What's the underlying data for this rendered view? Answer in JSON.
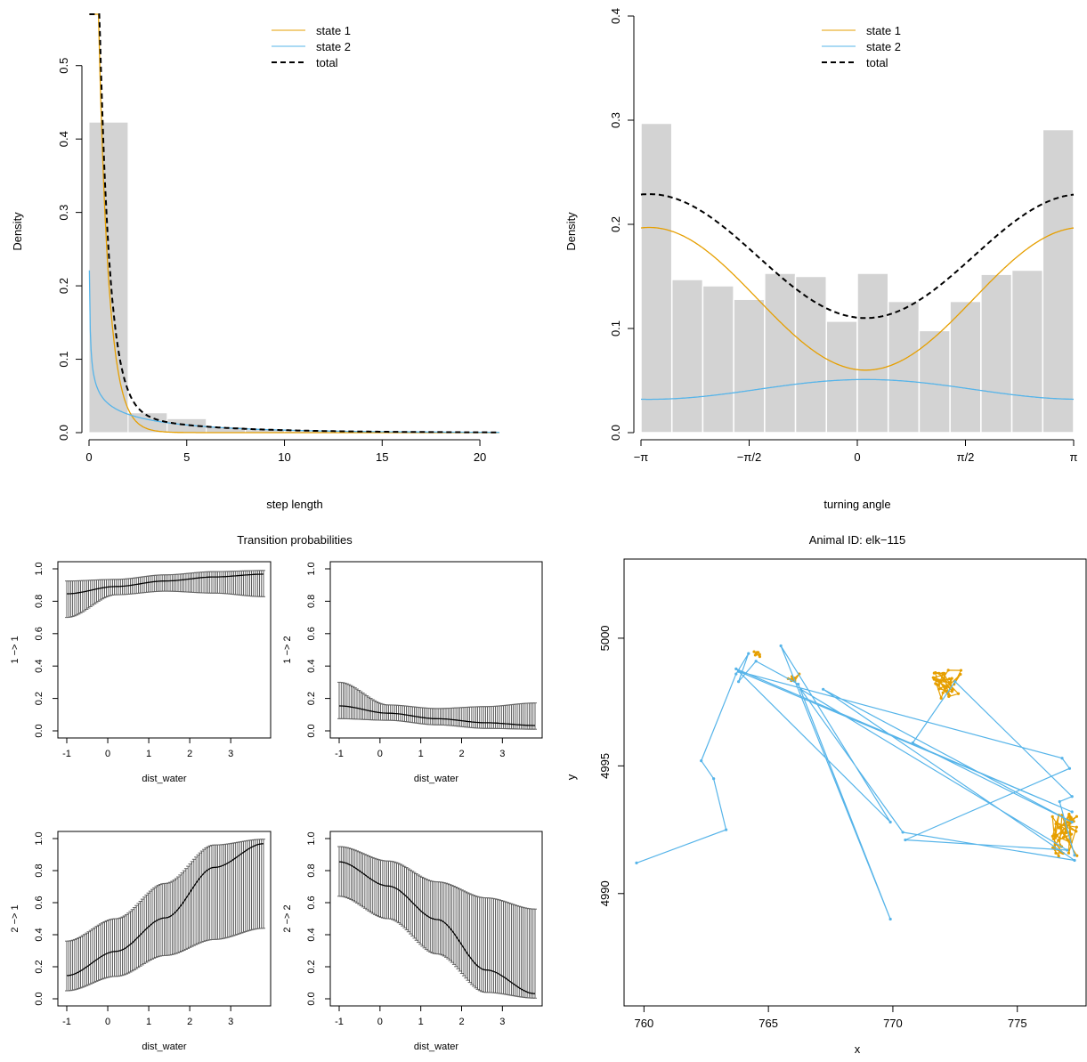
{
  "colors": {
    "state1": "#E69F00",
    "state2": "#56B4E9",
    "total": "#000000",
    "hist": "#d3d3d3",
    "ci": "#666666"
  },
  "chart_data": [
    {
      "id": "step",
      "type": "bar",
      "xlabel": "step length",
      "ylabel": "Density",
      "xlim": [
        0,
        21
      ],
      "ylim": [
        0,
        0.57
      ],
      "xticks": [
        0,
        5,
        10,
        15,
        20
      ],
      "yticks": [
        0.0,
        0.1,
        0.2,
        0.3,
        0.4,
        0.5
      ],
      "yticklabels": [
        "0.0",
        "0.1",
        "0.2",
        "0.3",
        "0.4",
        "0.5"
      ],
      "legend": {
        "placement": "top-center",
        "entries": [
          "state 1",
          "state 2",
          "total"
        ]
      },
      "histogram": {
        "breaks": [
          0,
          2,
          4,
          6,
          8,
          10,
          12,
          14,
          16,
          18,
          20
        ],
        "density": [
          0.423,
          0.027,
          0.019,
          0.008,
          0.004,
          0.002,
          0.001,
          0.0008,
          0.0005,
          0.0003
        ]
      },
      "series": [
        {
          "name": "state 1",
          "dist": "gamma",
          "weight": 0.8,
          "shape": 0.9,
          "rate": 1.8
        },
        {
          "name": "state 2",
          "dist": "gamma",
          "weight": 0.2,
          "shape": 0.6,
          "rate": 0.17
        },
        {
          "name": "total",
          "sum_of": [
            "state 1",
            "state 2"
          ]
        }
      ]
    },
    {
      "id": "angle",
      "type": "bar",
      "xlabel": "turning angle",
      "ylabel": "Density",
      "xlim": [
        -3.1416,
        3.1416
      ],
      "ylim": [
        0,
        0.4
      ],
      "xticks": [
        -3.1416,
        -1.5708,
        0,
        1.5708,
        3.1416
      ],
      "xticklabels": [
        "−π",
        "−π/2",
        "0",
        "π/2",
        "π"
      ],
      "yticks": [
        0.0,
        0.1,
        0.2,
        0.3,
        0.4
      ],
      "yticklabels": [
        "0.0",
        "0.1",
        "0.2",
        "0.3",
        "0.4"
      ],
      "legend": {
        "placement": "top-center",
        "entries": [
          "state 1",
          "state 2",
          "total"
        ]
      },
      "histogram": {
        "n_bins": 14,
        "density": [
          0.297,
          0.147,
          0.141,
          0.128,
          0.153,
          0.15,
          0.107,
          0.153,
          0.126,
          0.098,
          0.126,
          0.152,
          0.156,
          0.291
        ]
      },
      "series": [
        {
          "name": "state 1",
          "min": 0.06,
          "max": 0.197,
          "min_at": 0.12
        },
        {
          "name": "state 2",
          "min": 0.032,
          "max": 0.051,
          "max_at": 0.12
        },
        {
          "name": "total",
          "min": 0.11,
          "max": 0.229,
          "min_at": 0.12
        }
      ]
    },
    {
      "id": "tp",
      "type": "line",
      "title": "Transition probabilities",
      "xlabel": "dist_water",
      "xlim": [
        -1,
        3.8
      ],
      "ylim": [
        0,
        1
      ],
      "xticks": [
        -1,
        0,
        1,
        2,
        3
      ],
      "yticks": [
        0.0,
        0.2,
        0.4,
        0.6,
        0.8,
        1.0
      ],
      "yticklabels": [
        "0.0",
        "0.2",
        "0.4",
        "0.6",
        "0.8",
        "1.0"
      ],
      "panels": [
        {
          "ylabel": "1 −> 1",
          "est": [
            0.846,
            0.891,
            0.925,
            0.95,
            0.967
          ],
          "lo": [
            0.7,
            0.84,
            0.862,
            0.85,
            0.828
          ],
          "hi": [
            0.925,
            0.935,
            0.963,
            0.983,
            0.99
          ]
        },
        {
          "ylabel": "1 −> 2",
          "est": [
            0.154,
            0.109,
            0.075,
            0.05,
            0.033
          ],
          "lo": [
            0.075,
            0.065,
            0.037,
            0.015,
            0.01
          ],
          "hi": [
            0.3,
            0.16,
            0.138,
            0.15,
            0.172
          ]
        },
        {
          "ylabel": "2 −> 1",
          "est": [
            0.145,
            0.296,
            0.505,
            0.82,
            0.968
          ],
          "lo": [
            0.05,
            0.14,
            0.27,
            0.37,
            0.44
          ],
          "hi": [
            0.36,
            0.5,
            0.72,
            0.96,
            0.996
          ]
        },
        {
          "ylabel": "2 −> 2",
          "est": [
            0.855,
            0.704,
            0.495,
            0.18,
            0.032
          ],
          "lo": [
            0.64,
            0.5,
            0.28,
            0.04,
            0.004
          ],
          "hi": [
            0.95,
            0.86,
            0.73,
            0.63,
            0.56
          ]
        }
      ]
    },
    {
      "id": "track",
      "type": "scatter",
      "title": "Animal ID: elk−115",
      "xlabel": "x",
      "ylabel": "y",
      "xlim": [
        759.2,
        777.8
      ],
      "ylim": [
        4985.6,
        5003.1
      ],
      "xticks": [
        760,
        765,
        770,
        775
      ],
      "yticks": [
        4990,
        4995,
        5000
      ],
      "points_state2": [
        [
          759.7,
          4991.2
        ],
        [
          763.3,
          4992.5
        ],
        [
          762.8,
          4994.5
        ],
        [
          762.3,
          4995.2
        ],
        [
          763.7,
          4998.6
        ],
        [
          764.2,
          4999.4
        ],
        [
          763.8,
          4998.3
        ],
        [
          764.5,
          4999.1
        ],
        [
          766.2,
          4998.2
        ],
        [
          769.9,
          4989.0
        ],
        [
          765.5,
          4999.7
        ],
        [
          769.9,
          4992.8
        ],
        [
          763.7,
          4998.8
        ],
        [
          777.2,
          4993.2
        ],
        [
          763.8,
          4998.7
        ],
        [
          776.8,
          4995.3
        ],
        [
          777.1,
          4994.9
        ],
        [
          770.5,
          4992.1
        ],
        [
          777.0,
          4991.7
        ],
        [
          766.3,
          4998.0
        ],
        [
          770.4,
          4992.4
        ],
        [
          777.3,
          4991.3
        ],
        [
          767.2,
          4998.0
        ],
        [
          777.2,
          4992.8
        ],
        [
          770.8,
          4995.9
        ],
        [
          772.5,
          4998.3
        ],
        [
          777.2,
          4993.8
        ],
        [
          776.7,
          4993.6
        ],
        [
          777.3,
          4991.5
        ]
      ],
      "clusters_state1": [
        {
          "center": [
            772.2,
            4998.2
          ],
          "spread": [
            0.6,
            0.55
          ],
          "n": 34
        },
        {
          "center": [
            776.9,
            4992.3
          ],
          "spread": [
            0.5,
            0.85
          ],
          "n": 40
        },
        {
          "center": [
            764.5,
            4999.45
          ],
          "spread": [
            0.2,
            0.18
          ],
          "n": 8
        },
        {
          "center": [
            766.0,
            4998.5
          ],
          "spread": [
            0.25,
            0.3
          ],
          "n": 8
        }
      ]
    }
  ]
}
